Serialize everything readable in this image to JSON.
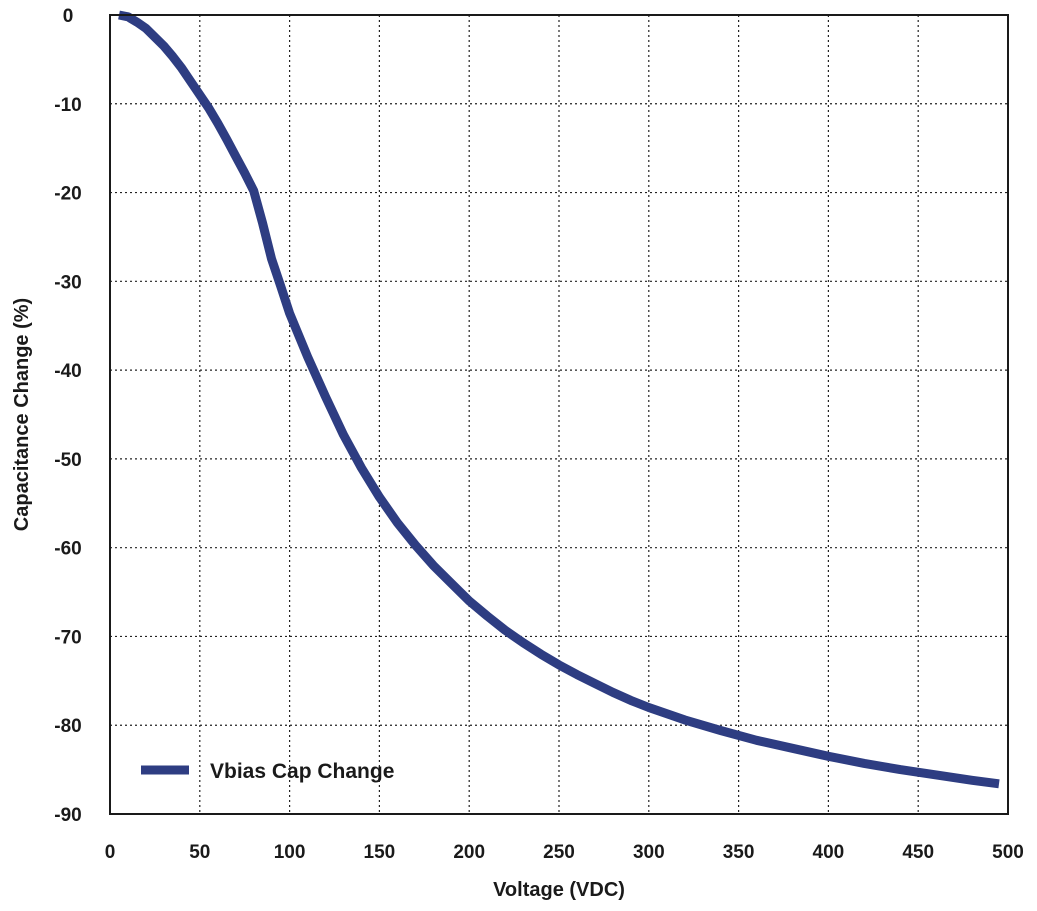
{
  "chart_data": {
    "type": "line",
    "title": "",
    "xlabel": "Voltage (VDC)",
    "ylabel": "Capacitance Change (%)",
    "xlim": [
      0,
      500
    ],
    "ylim": [
      -90,
      0
    ],
    "x_ticks": [
      "0",
      "50",
      "100",
      "150",
      "200",
      "250",
      "300",
      "350",
      "400",
      "450",
      "500"
    ],
    "y_ticks": [
      "0",
      "-10",
      "-20",
      "-30",
      "-40",
      "-50",
      "-60",
      "-70",
      "-80",
      "-90"
    ],
    "grid": true,
    "legend_position": "bottom-left",
    "series": [
      {
        "name": "Vbias Cap Change",
        "color": "#2e3d82",
        "points": [
          [
            5,
            0
          ],
          [
            10,
            -0.2
          ],
          [
            15,
            -0.8
          ],
          [
            20,
            -1.5
          ],
          [
            25,
            -2.5
          ],
          [
            30,
            -3.5
          ],
          [
            35,
            -4.7
          ],
          [
            40,
            -6.0
          ],
          [
            45,
            -7.5
          ],
          [
            50,
            -9.0
          ],
          [
            55,
            -10.5
          ],
          [
            60,
            -12.2
          ],
          [
            65,
            -14.0
          ],
          [
            70,
            -15.9
          ],
          [
            75,
            -17.8
          ],
          [
            80,
            -19.8
          ],
          [
            85,
            -23.5
          ],
          [
            90,
            -27.5
          ],
          [
            95,
            -30.5
          ],
          [
            100,
            -33.6
          ],
          [
            110,
            -38.5
          ],
          [
            120,
            -43.0
          ],
          [
            130,
            -47.3
          ],
          [
            140,
            -51.0
          ],
          [
            150,
            -54.3
          ],
          [
            160,
            -57.2
          ],
          [
            170,
            -59.7
          ],
          [
            180,
            -62.0
          ],
          [
            190,
            -64.0
          ],
          [
            200,
            -66.0
          ],
          [
            210,
            -67.7
          ],
          [
            220,
            -69.3
          ],
          [
            230,
            -70.7
          ],
          [
            240,
            -72.0
          ],
          [
            250,
            -73.2
          ],
          [
            260,
            -74.3
          ],
          [
            270,
            -75.3
          ],
          [
            280,
            -76.3
          ],
          [
            290,
            -77.2
          ],
          [
            300,
            -78.0
          ],
          [
            320,
            -79.4
          ],
          [
            340,
            -80.6
          ],
          [
            360,
            -81.7
          ],
          [
            380,
            -82.6
          ],
          [
            400,
            -83.5
          ],
          [
            420,
            -84.3
          ],
          [
            440,
            -85.0
          ],
          [
            460,
            -85.6
          ],
          [
            480,
            -86.2
          ],
          [
            495,
            -86.6
          ]
        ]
      }
    ]
  }
}
